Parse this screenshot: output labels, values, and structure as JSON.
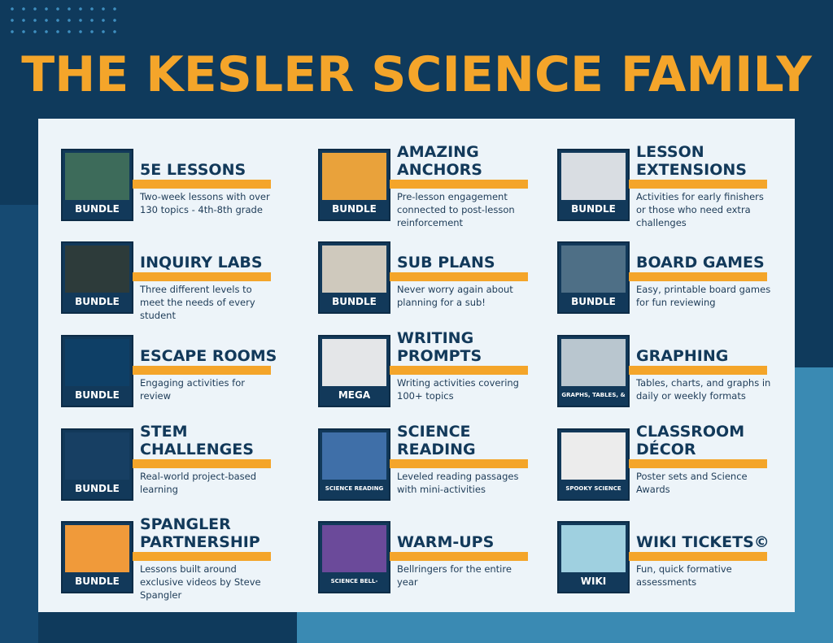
{
  "title": "THE KESLER SCIENCE FAMILY",
  "colors": {
    "background": "#0f3a5c",
    "title": "#f4a52a",
    "panel": "#edf4f9",
    "accent_bar": "#f4a52a",
    "heading": "#12395a"
  },
  "cards": [
    {
      "title": "5E LESSONS",
      "desc": "Two-week lessons with over 130 topics - 4th-8th grade",
      "thumb_label": "BUNDLE",
      "thumb_color": "#3d6b5a"
    },
    {
      "title": "AMAZING ANCHORS",
      "desc": "Pre-lesson engagement connected to post-lesson reinforcement",
      "thumb_label": "BUNDLE",
      "thumb_color": "#e9a23b"
    },
    {
      "title": "LESSON EXTENSIONS",
      "desc": "Activities for early finishers or those who need extra challenges",
      "thumb_label": "BUNDLE",
      "thumb_color": "#d9dde2"
    },
    {
      "title": "INQUIRY LABS",
      "desc": "Three different levels to meet the needs of every student",
      "thumb_label": "BUNDLE",
      "thumb_color": "#2d3b3a"
    },
    {
      "title": "SUB PLANS",
      "desc": "Never worry again about planning for a sub!",
      "thumb_label": "BUNDLE",
      "thumb_color": "#cfc9bd"
    },
    {
      "title": "BOARD GAMES",
      "desc": "Easy, printable board games for fun reviewing",
      "thumb_label": "BUNDLE",
      "thumb_color": "#4e6f86"
    },
    {
      "title": "ESCAPE ROOMS",
      "desc": "Engaging activities for review",
      "thumb_label": "BUNDLE",
      "thumb_color": "#0e3f66"
    },
    {
      "title": "WRITING PROMPTS",
      "desc": "Writing activities covering 100+ topics",
      "thumb_label": "MEGA BUNDLE",
      "thumb_color": "#e4e6e8"
    },
    {
      "title": "GRAPHING",
      "desc": "Tables, charts, and graphs in daily or weekly formats",
      "thumb_label": "GRAPHS, TABLES, & CHARTS",
      "thumb_color": "#b9c6cf"
    },
    {
      "title": "STEM CHALLENGES",
      "desc": "Real-world project-based learning",
      "thumb_label": "BUNDLE",
      "thumb_color": "#173f63"
    },
    {
      "title": "SCIENCE READING",
      "desc": "Leveled reading passages with mini-activities",
      "thumb_label": "SCIENCE READING COMPREHENSION",
      "thumb_color": "#3f6fa8"
    },
    {
      "title": "CLASSROOM DÉCOR",
      "desc": "Poster sets and Science Awards",
      "thumb_label": "SPOOKY SCIENCE POSTERS",
      "thumb_color": "#ececec"
    },
    {
      "title": "SPANGLER PARTNERSHIP",
      "desc": "Lessons built around exclusive videos by Steve Spangler",
      "thumb_label": "BUNDLE",
      "thumb_color": "#f09a3a"
    },
    {
      "title": "WARM-UPS",
      "desc": "Bellringers for the entire year",
      "thumb_label": "SCIENCE BELL-RINGERS",
      "thumb_color": "#6b4a9a"
    },
    {
      "title": "WIKI TICKETS©",
      "desc": "Fun, quick formative assessments",
      "thumb_label": "WIKI TICKETS",
      "thumb_color": "#9fd0e0"
    }
  ]
}
